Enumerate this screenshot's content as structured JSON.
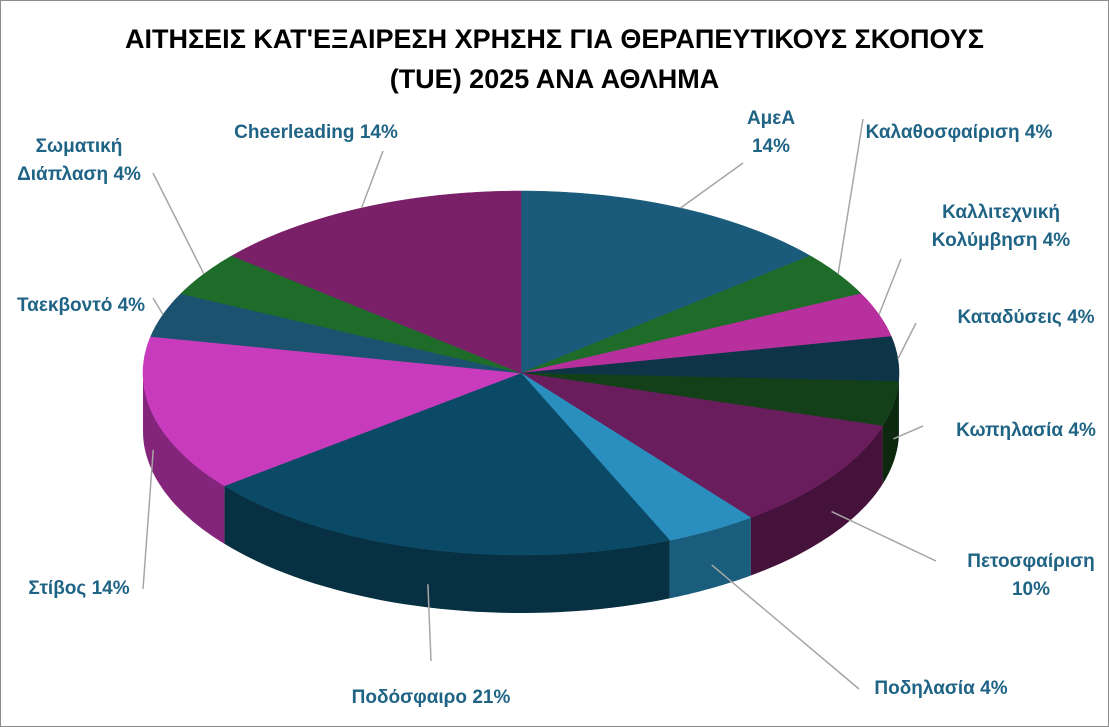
{
  "chart_data": {
    "type": "pie",
    "title": "ΑΙΤΗΣΕΙΣ ΚΑΤ'ΕΞΑΙΡΕΣΗ ΧΡΗΣΗΣ ΓΙΑ ΘΕΡΑΠΕΥΤΙΚΟΥΣ ΣΚΟΠΟΥΣ (TUE) 2025 ΑΝΑ ΑΘΛΗΜΑ",
    "categories": [
      "ΑμεΑ",
      "Καλαθοσφαίριση",
      "Καλλιτεχνική Κολύμβηση",
      "Καταδύσεις",
      "Κωπηλασία",
      "Πετοσφαίριση",
      "Ποδηλασία",
      "Ποδόσφαιρο",
      "Στίβος",
      "Ταεκβοντό",
      "Σωματική Διάπλαση",
      "Cheerleading"
    ],
    "values": [
      14,
      4,
      4,
      4,
      4,
      10,
      4,
      21,
      14,
      4,
      4,
      14
    ],
    "value_labels": [
      "14%",
      "4%",
      "4%",
      "4%",
      "4%",
      "10%",
      "4%",
      "21%",
      "14%",
      "4%",
      "4%",
      "14%"
    ],
    "colors": [
      "#1a5b7b",
      "#1f6b2a",
      "#b8309e",
      "#0d3447",
      "#134019",
      "#6a1d5d",
      "#2a8fbf",
      "#0b4a66",
      "#c93bbd",
      "#1a5270",
      "#1e6b2a",
      "#7a2068"
    ]
  }
}
